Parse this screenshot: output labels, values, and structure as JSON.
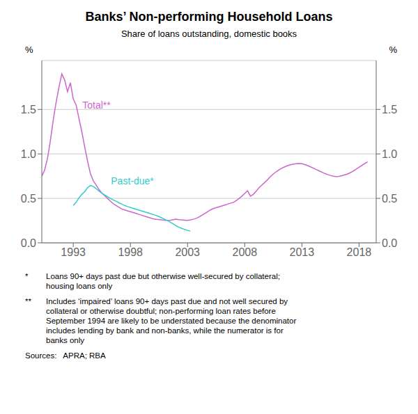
{
  "chart_data": {
    "type": "line",
    "title": "Banks’ Non-performing Household Loans",
    "subtitle": "Share of loans outstanding, domestic books",
    "y_label": "%",
    "y2_label": "%",
    "xlim": [
      1990.25,
      2019.5
    ],
    "xticks": [
      1993,
      1998,
      2003,
      2008,
      2013,
      2018
    ],
    "ylim": [
      0.0,
      2.05
    ],
    "yticks": [
      {
        "value": 0.0,
        "label": "0.0"
      },
      0.5,
      {
        "value": 1.0,
        "label": "1.0"
      },
      1.5
    ],
    "y2lim": [
      0.0,
      2.05
    ],
    "y2ticks": [
      {
        "value": 0.0,
        "label": "0.0"
      },
      0.5,
      {
        "value": 1.0,
        "label": "1.0"
      },
      1.5
    ],
    "grid": "y",
    "series": [
      {
        "name": "Total**",
        "color": "#cc66cc",
        "x": [
          1990.25,
          1990.5,
          1990.75,
          1991.0,
          1991.25,
          1991.5,
          1991.75,
          1992.0,
          1992.25,
          1992.5,
          1992.75,
          1993.0,
          1993.25,
          1993.5,
          1993.75,
          1994.0,
          1994.25,
          1994.5,
          1994.75,
          1995.0,
          1995.25,
          1995.5,
          1995.75,
          1996.0,
          1996.25,
          1996.5,
          1996.75,
          1997.0,
          1997.25,
          1997.5,
          1997.75,
          1998.0,
          1998.25,
          1998.5,
          1998.75,
          1999.0,
          1999.25,
          1999.5,
          1999.75,
          2000.0,
          2000.25,
          2000.5,
          2000.75,
          2001.0,
          2001.25,
          2001.5,
          2001.75,
          2002.0,
          2002.25,
          2002.5,
          2002.75,
          2003.0,
          2003.25,
          2003.5,
          2003.75,
          2004.0,
          2004.25,
          2004.5,
          2004.75,
          2005.0,
          2005.25,
          2005.5,
          2005.75,
          2006.0,
          2006.25,
          2006.5,
          2006.75,
          2007.0,
          2007.25,
          2007.5,
          2007.75,
          2008.0,
          2008.25,
          2008.5,
          2008.75,
          2009.0,
          2009.25,
          2009.5,
          2009.75,
          2010.0,
          2010.25,
          2010.5,
          2010.75,
          2011.0,
          2011.25,
          2011.5,
          2011.75,
          2012.0,
          2012.25,
          2012.5,
          2012.75,
          2013.0,
          2013.25,
          2013.5,
          2013.75,
          2014.0,
          2014.25,
          2014.5,
          2014.75,
          2015.0,
          2015.25,
          2015.5,
          2015.75,
          2016.0,
          2016.25,
          2016.5,
          2016.75,
          2017.0,
          2017.25,
          2017.5,
          2017.75,
          2018.0,
          2018.25,
          2018.5,
          2018.75
        ],
        "values": [
          0.75,
          0.82,
          0.95,
          1.15,
          1.38,
          1.58,
          1.75,
          1.9,
          1.83,
          1.7,
          1.8,
          1.62,
          1.55,
          1.4,
          1.25,
          1.08,
          0.92,
          0.78,
          0.7,
          0.65,
          0.6,
          0.56,
          0.53,
          0.5,
          0.47,
          0.44,
          0.42,
          0.4,
          0.38,
          0.37,
          0.36,
          0.35,
          0.34,
          0.33,
          0.32,
          0.31,
          0.3,
          0.29,
          0.28,
          0.27,
          0.265,
          0.262,
          0.258,
          0.255,
          0.252,
          0.255,
          0.26,
          0.265,
          0.26,
          0.258,
          0.255,
          0.252,
          0.258,
          0.265,
          0.275,
          0.29,
          0.31,
          0.33,
          0.35,
          0.37,
          0.385,
          0.395,
          0.405,
          0.415,
          0.425,
          0.435,
          0.445,
          0.455,
          0.475,
          0.498,
          0.525,
          0.555,
          0.585,
          0.525,
          0.545,
          0.58,
          0.62,
          0.65,
          0.68,
          0.71,
          0.745,
          0.775,
          0.8,
          0.82,
          0.84,
          0.855,
          0.868,
          0.878,
          0.885,
          0.89,
          0.892,
          0.89,
          0.88,
          0.868,
          0.855,
          0.84,
          0.825,
          0.81,
          0.795,
          0.78,
          0.768,
          0.758,
          0.75,
          0.745,
          0.748,
          0.755,
          0.765,
          0.775,
          0.79,
          0.808,
          0.828,
          0.85,
          0.872,
          0.892,
          0.91
        ]
      },
      {
        "name": "Past-due*",
        "color": "#33cccc",
        "x": [
          1993.0,
          1993.25,
          1993.5,
          1993.75,
          1994.0,
          1994.25,
          1994.5,
          1994.75,
          1995.0,
          1995.25,
          1995.5,
          1995.75,
          1996.0,
          1996.25,
          1996.5,
          1996.75,
          1997.0,
          1997.25,
          1997.5,
          1997.75,
          1998.0,
          1998.25,
          1998.5,
          1998.75,
          1999.0,
          1999.25,
          1999.5,
          1999.75,
          2000.0,
          2000.25,
          2000.5,
          2000.75,
          2001.0,
          2001.25,
          2001.5,
          2001.75,
          2002.0,
          2002.25,
          2002.5,
          2002.75,
          2003.0,
          2003.25
        ],
        "values": [
          0.42,
          0.455,
          0.505,
          0.545,
          0.575,
          0.62,
          0.645,
          0.635,
          0.61,
          0.582,
          0.558,
          0.538,
          0.52,
          0.5,
          0.482,
          0.468,
          0.45,
          0.435,
          0.42,
          0.408,
          0.398,
          0.388,
          0.378,
          0.368,
          0.358,
          0.348,
          0.338,
          0.328,
          0.318,
          0.308,
          0.295,
          0.28,
          0.265,
          0.25,
          0.232,
          0.212,
          0.192,
          0.175,
          0.162,
          0.15,
          0.14,
          0.132
        ]
      }
    ],
    "annotations": [
      {
        "text": "Total**",
        "x": 1993.8,
        "y": 1.55,
        "color": "#cc66cc"
      },
      {
        "text": "Past-due*",
        "x": 1996.3,
        "y": 0.695,
        "color": "#33cccc"
      }
    ],
    "footnotes": [
      {
        "mark": "*",
        "text": "Loans 90+ days past due but otherwise well-secured by collateral;\nhousing loans only"
      },
      {
        "mark": "**",
        "text": "Includes ‘impaired’ loans 90+ days past due and not well secured by\ncollateral or otherwise doubtful; non-performing loan rates before\nSeptember 1994 are likely to be understated because the denominator\nincludes lending by bank and non-banks, while the numerator is for\nbanks only"
      }
    ],
    "sources": "Sources:   APRA; RBA"
  }
}
